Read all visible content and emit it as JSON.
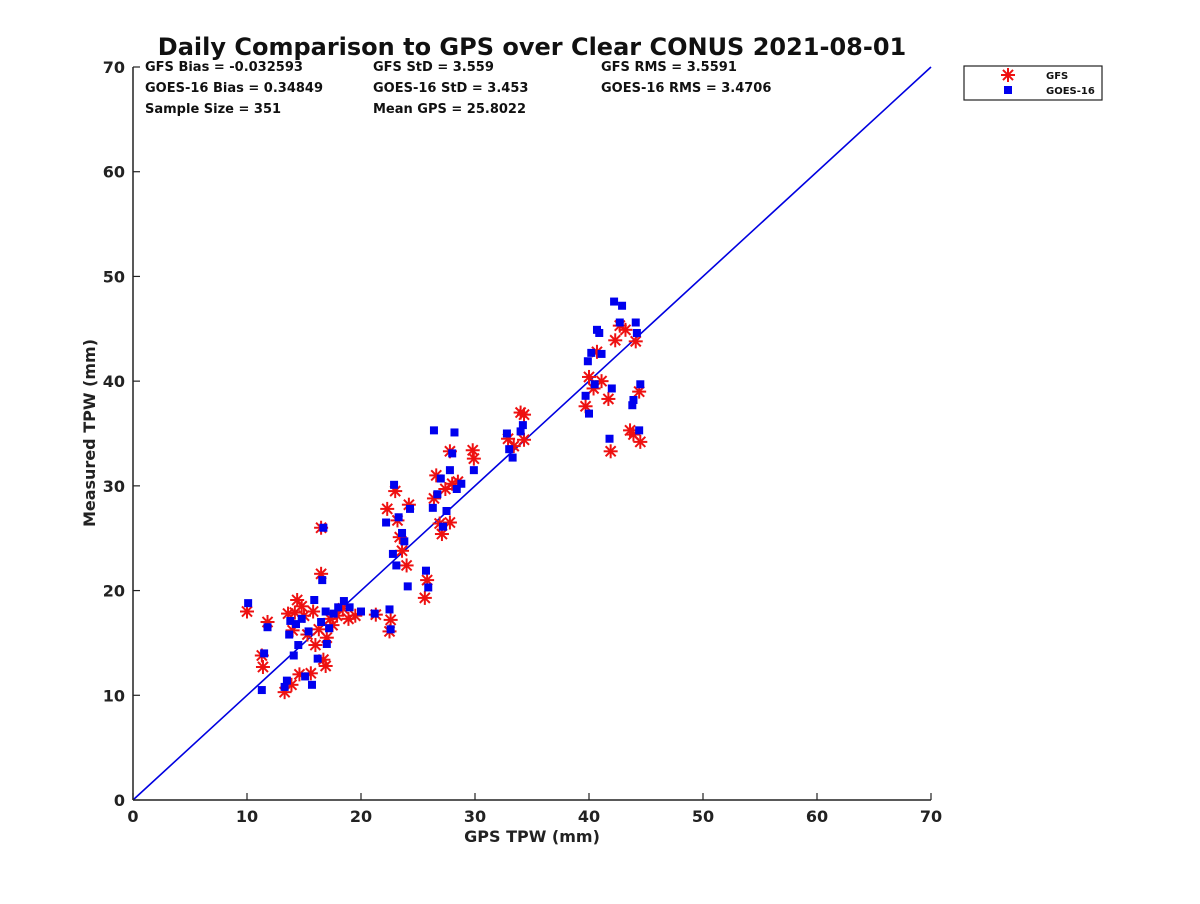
{
  "chart_data": {
    "type": "scatter",
    "title": "Daily Comparison to GPS over Clear CONUS 2021-08-01",
    "xlabel": "GPS TPW (mm)",
    "ylabel": "Measured TPW (mm)",
    "xlim": [
      0,
      70
    ],
    "ylim": [
      0,
      70
    ],
    "xticks": [
      0,
      10,
      20,
      30,
      40,
      50,
      60,
      70
    ],
    "yticks": [
      0,
      10,
      20,
      30,
      40,
      50,
      60,
      70
    ],
    "stats": [
      "GFS Bias = -0.032593",
      "GFS StD = 3.559",
      "GFS RMS = 3.5591",
      "GOES-16 Bias = 0.34849",
      "GOES-16 StD = 3.453",
      "GOES-16 RMS = 3.4706",
      "Sample Size = 351",
      "Mean GPS = 25.8022"
    ],
    "legend": {
      "position": "outside-top-right",
      "entries": [
        "GFS",
        "GOES-16"
      ]
    },
    "reference_line": {
      "name": "1:1 line",
      "x": [
        0,
        70
      ],
      "y": [
        0,
        70
      ],
      "color": "#0000e0"
    },
    "series": [
      {
        "name": "GFS",
        "marker": "asterisk",
        "color": "#ee1111",
        "points": [
          [
            10,
            18
          ],
          [
            11.3,
            13.8
          ],
          [
            11.4,
            12.7
          ],
          [
            11.8,
            17
          ],
          [
            13.3,
            10.3
          ],
          [
            13.6,
            17.8
          ],
          [
            13.9,
            11
          ],
          [
            14,
            16.2
          ],
          [
            14.2,
            17.9
          ],
          [
            14.4,
            19.1
          ],
          [
            14.6,
            12
          ],
          [
            14.8,
            18.5
          ],
          [
            15,
            17.6
          ],
          [
            15.3,
            15.8
          ],
          [
            15.6,
            12.1
          ],
          [
            15.8,
            18
          ],
          [
            16,
            14.8
          ],
          [
            16.3,
            16.3
          ],
          [
            16.5,
            21.6
          ],
          [
            16.5,
            26
          ],
          [
            16.7,
            13.4
          ],
          [
            16.9,
            12.8
          ],
          [
            17,
            15.5
          ],
          [
            17.3,
            17.3
          ],
          [
            17.5,
            16.7
          ],
          [
            17.9,
            17.6
          ],
          [
            18.4,
            18.3
          ],
          [
            18.9,
            17.3
          ],
          [
            19.5,
            17.6
          ],
          [
            21.3,
            17.7
          ],
          [
            22.3,
            27.8
          ],
          [
            22.5,
            16.1
          ],
          [
            22.6,
            17.2
          ],
          [
            23,
            29.5
          ],
          [
            23.2,
            26.7
          ],
          [
            23.4,
            25.1
          ],
          [
            23.6,
            23.8
          ],
          [
            24,
            22.4
          ],
          [
            24.2,
            28.2
          ],
          [
            25.6,
            19.3
          ],
          [
            25.8,
            21
          ],
          [
            26.4,
            28.8
          ],
          [
            26.6,
            31
          ],
          [
            26.9,
            26.4
          ],
          [
            27.1,
            25.4
          ],
          [
            27.4,
            29.7
          ],
          [
            27.8,
            33.3
          ],
          [
            27.8,
            26.5
          ],
          [
            28,
            30.2
          ],
          [
            28.5,
            30.4
          ],
          [
            29.8,
            33.4
          ],
          [
            29.9,
            32.6
          ],
          [
            32.9,
            34.5
          ],
          [
            33.4,
            33.8
          ],
          [
            34,
            37
          ],
          [
            34.3,
            34.4
          ],
          [
            34.3,
            36.8
          ],
          [
            39.7,
            37.6
          ],
          [
            40,
            40.4
          ],
          [
            40.4,
            39.3
          ],
          [
            40.7,
            42.8
          ],
          [
            41.1,
            40
          ],
          [
            41.7,
            38.3
          ],
          [
            41.9,
            33.3
          ],
          [
            42.3,
            43.9
          ],
          [
            42.7,
            45.3
          ],
          [
            43.2,
            44.9
          ],
          [
            43.6,
            35.3
          ],
          [
            43.9,
            34.9
          ],
          [
            44.1,
            43.8
          ],
          [
            44.4,
            39
          ],
          [
            44.5,
            34.2
          ]
        ]
      },
      {
        "name": "GOES-16",
        "marker": "square",
        "color": "#0000ee",
        "points": [
          [
            10.1,
            18.8
          ],
          [
            11.3,
            10.5
          ],
          [
            11.5,
            14
          ],
          [
            11.8,
            16.5
          ],
          [
            13.3,
            10.8
          ],
          [
            13.5,
            11.4
          ],
          [
            13.7,
            15.8
          ],
          [
            13.8,
            17.1
          ],
          [
            14.1,
            13.8
          ],
          [
            14.3,
            16.8
          ],
          [
            14.5,
            14.8
          ],
          [
            14.8,
            17.3
          ],
          [
            15.1,
            11.8
          ],
          [
            15.4,
            16.1
          ],
          [
            15.7,
            11
          ],
          [
            15.9,
            19.1
          ],
          [
            16.2,
            13.5
          ],
          [
            16.5,
            17
          ],
          [
            16.6,
            21
          ],
          [
            16.7,
            26
          ],
          [
            16.9,
            18
          ],
          [
            17,
            14.9
          ],
          [
            17.2,
            16.4
          ],
          [
            17.6,
            17.8
          ],
          [
            18,
            18.4
          ],
          [
            18.5,
            19
          ],
          [
            19,
            18.4
          ],
          [
            20,
            18
          ],
          [
            21.2,
            17.8
          ],
          [
            22.2,
            26.5
          ],
          [
            22.5,
            18.2
          ],
          [
            22.6,
            16.3
          ],
          [
            22.8,
            23.5
          ],
          [
            22.9,
            30.1
          ],
          [
            23.1,
            22.4
          ],
          [
            23.3,
            27
          ],
          [
            23.6,
            25.5
          ],
          [
            23.8,
            24.7
          ],
          [
            24.1,
            20.4
          ],
          [
            24.3,
            27.8
          ],
          [
            25.7,
            21.9
          ],
          [
            25.9,
            20.3
          ],
          [
            26.3,
            27.9
          ],
          [
            26.4,
            35.3
          ],
          [
            26.7,
            29.2
          ],
          [
            27,
            30.7
          ],
          [
            27.2,
            26.1
          ],
          [
            27.5,
            27.6
          ],
          [
            27.8,
            31.5
          ],
          [
            28,
            33.1
          ],
          [
            28.2,
            35.1
          ],
          [
            28.4,
            29.7
          ],
          [
            28.8,
            30.2
          ],
          [
            29.9,
            31.5
          ],
          [
            32.8,
            35
          ],
          [
            33,
            33.5
          ],
          [
            33.3,
            32.7
          ],
          [
            34,
            35.2
          ],
          [
            34.2,
            35.8
          ],
          [
            39.7,
            38.6
          ],
          [
            39.9,
            41.9
          ],
          [
            40,
            36.9
          ],
          [
            40.2,
            42.7
          ],
          [
            40.5,
            39.7
          ],
          [
            40.7,
            44.9
          ],
          [
            40.9,
            44.6
          ],
          [
            41.1,
            42.6
          ],
          [
            41.8,
            34.5
          ],
          [
            42,
            39.3
          ],
          [
            42.2,
            47.6
          ],
          [
            42.7,
            45.6
          ],
          [
            42.9,
            47.2
          ],
          [
            43.8,
            37.7
          ],
          [
            43.9,
            38.2
          ],
          [
            44.1,
            45.6
          ],
          [
            44.2,
            44.6
          ],
          [
            44.5,
            39.7
          ],
          [
            44.4,
            35.3
          ]
        ]
      }
    ]
  }
}
